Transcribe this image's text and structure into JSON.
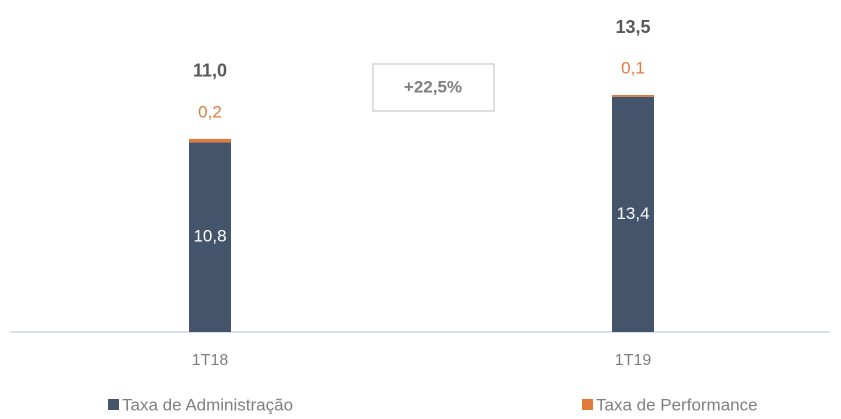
{
  "chart_data": {
    "type": "stacked_bar",
    "categories": [
      "1T18",
      "1T19"
    ],
    "series": [
      {
        "name": "Taxa de Administração",
        "color": "#44546a",
        "values": [
          10.8,
          13.4
        ],
        "value_labels": [
          "10,8",
          "13,4"
        ]
      },
      {
        "name": "Taxa de Performance",
        "color": "#e07b39",
        "values": [
          0.2,
          0.1
        ],
        "value_labels": [
          "0,2",
          "0,1"
        ]
      }
    ],
    "totals": [
      11.0,
      13.5
    ],
    "total_labels": [
      "11,0",
      "13,5"
    ],
    "annotation": "+22,5%"
  }
}
